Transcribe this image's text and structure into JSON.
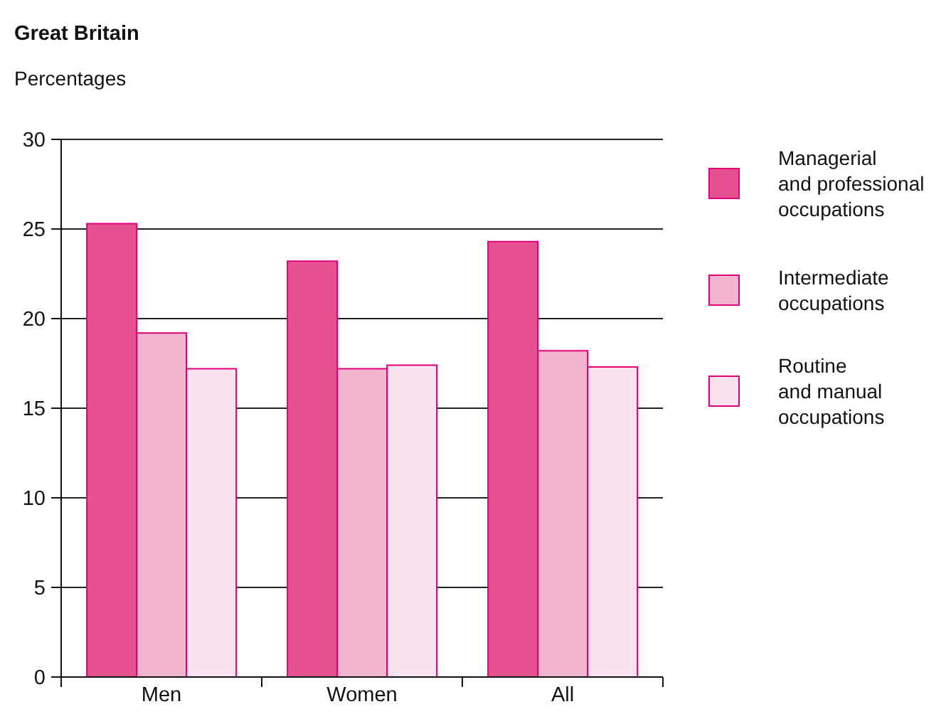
{
  "chart_data": {
    "type": "bar",
    "title": "Great Britain",
    "ylabel": "Percentages",
    "categories": [
      "Men",
      "Women",
      "All"
    ],
    "series": [
      {
        "name": "Managerial\nand professional\noccupations",
        "color": "#e5528f",
        "values": [
          25.3,
          23.2,
          24.3
        ]
      },
      {
        "name": "Intermediate\noccupations",
        "color": "#f3b4cf",
        "values": [
          19.2,
          17.2,
          18.2
        ]
      },
      {
        "name": "Routine\nand manual\noccupations",
        "color": "#fae3ee",
        "values": [
          17.2,
          17.4,
          17.3
        ]
      }
    ],
    "ylim": [
      0,
      30
    ],
    "yticks": [
      0,
      5,
      10,
      15,
      20,
      25,
      30
    ],
    "grid": "y",
    "legend": "right"
  }
}
